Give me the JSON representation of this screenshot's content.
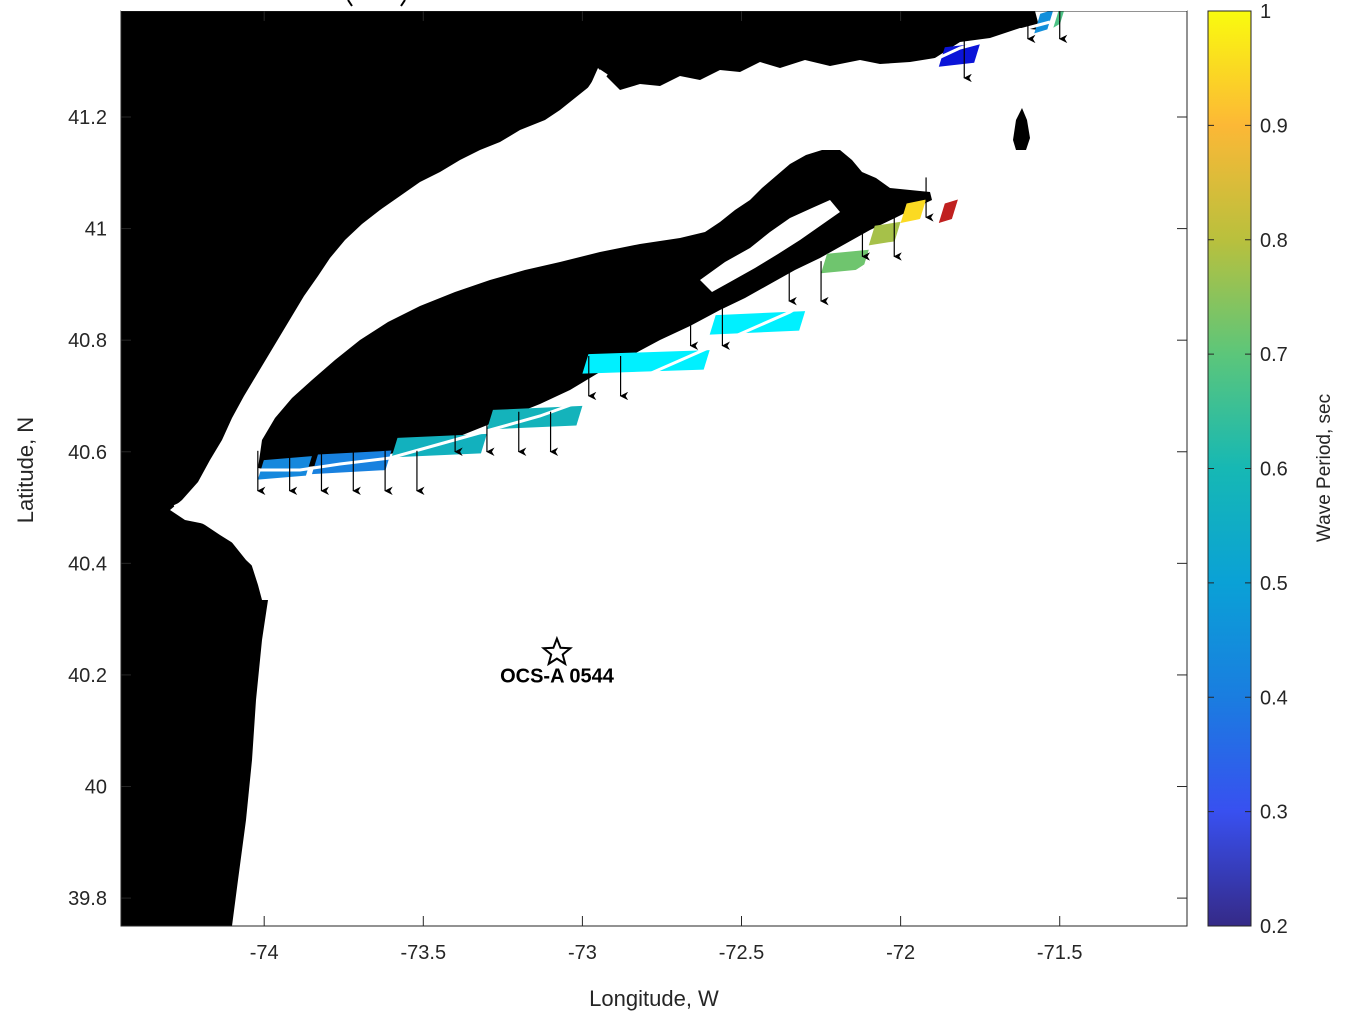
{
  "chart_data": {
    "type": "map",
    "title": "",
    "xlabel": "Longitude, W",
    "ylabel": "Latitude, N",
    "xlim": [
      -74.45,
      -71.1
    ],
    "ylim": [
      39.75,
      41.39
    ],
    "xticks": [
      "-74",
      "-73.5",
      "-73",
      "-72.5",
      "-72",
      "-71.5"
    ],
    "yticks": [
      "39.8",
      "40",
      "40.2",
      "40.4",
      "40.6",
      "40.8",
      "41",
      "41.2"
    ],
    "colorbar": {
      "label": "Wave Period, sec",
      "range": [
        0.2,
        1
      ],
      "ticks": [
        "0.2",
        "0.3",
        "0.4",
        "0.5",
        "0.6",
        "0.7",
        "0.8",
        "0.9",
        "1"
      ],
      "colormap": "parula"
    },
    "site": {
      "name": "OCS-A 0544",
      "lon": -73.08,
      "lat": 40.24,
      "marker": "pentagram"
    },
    "shoreline_segments": [
      {
        "lon_start": -74.02,
        "lon_end": -73.85,
        "lat": 40.56,
        "value": 0.43
      },
      {
        "lon_start": -73.85,
        "lon_end": -73.6,
        "lat": 40.57,
        "value": 0.41
      },
      {
        "lon_start": -73.6,
        "lon_end": -73.3,
        "lat": 40.6,
        "value": 0.57
      },
      {
        "lon_start": -73.3,
        "lon_end": -73.0,
        "lat": 40.65,
        "value": 0.58
      },
      {
        "lon_start": -73.0,
        "lon_end": -72.6,
        "lat": 40.75,
        "value": 0.6
      },
      {
        "lon_start": -72.6,
        "lon_end": -72.3,
        "lat": 40.82,
        "value": 0.6
      },
      {
        "lon_start": -72.25,
        "lon_end": -72.1,
        "lat": 40.93,
        "value": 0.72
      },
      {
        "lon_start": -72.1,
        "lon_end": -72.0,
        "lat": 40.98,
        "value": 0.78
      },
      {
        "lon_start": -72.0,
        "lon_end": -71.92,
        "lat": 41.02,
        "value": 0.95
      },
      {
        "lon_start": -71.88,
        "lon_end": -71.82,
        "lat": 41.02,
        "value": 1.0
      },
      {
        "lon_start": -71.88,
        "lon_end": -71.75,
        "lat": 41.3,
        "value": 0.22
      },
      {
        "lon_start": -71.58,
        "lon_end": -71.52,
        "lat": 41.36,
        "value": 0.45
      },
      {
        "lon_start": -71.52,
        "lon_end": -71.48,
        "lat": 41.37,
        "value": 0.68
      }
    ],
    "arrows_lon_lat": [
      [
        -74.02,
        40.53
      ],
      [
        -73.92,
        40.53
      ],
      [
        -73.82,
        40.53
      ],
      [
        -73.72,
        40.53
      ],
      [
        -73.62,
        40.53
      ],
      [
        -73.52,
        40.53
      ],
      [
        -73.4,
        40.6
      ],
      [
        -73.3,
        40.6
      ],
      [
        -73.2,
        40.6
      ],
      [
        -73.1,
        40.6
      ],
      [
        -72.98,
        40.7
      ],
      [
        -72.88,
        40.7
      ],
      [
        -72.66,
        40.79
      ],
      [
        -72.56,
        40.79
      ],
      [
        -72.35,
        40.87
      ],
      [
        -72.25,
        40.87
      ],
      [
        -72.12,
        40.95
      ],
      [
        -72.02,
        40.95
      ],
      [
        -71.92,
        41.02
      ],
      [
        -71.8,
        41.27
      ],
      [
        -71.6,
        41.34
      ],
      [
        -71.5,
        41.34
      ]
    ]
  }
}
